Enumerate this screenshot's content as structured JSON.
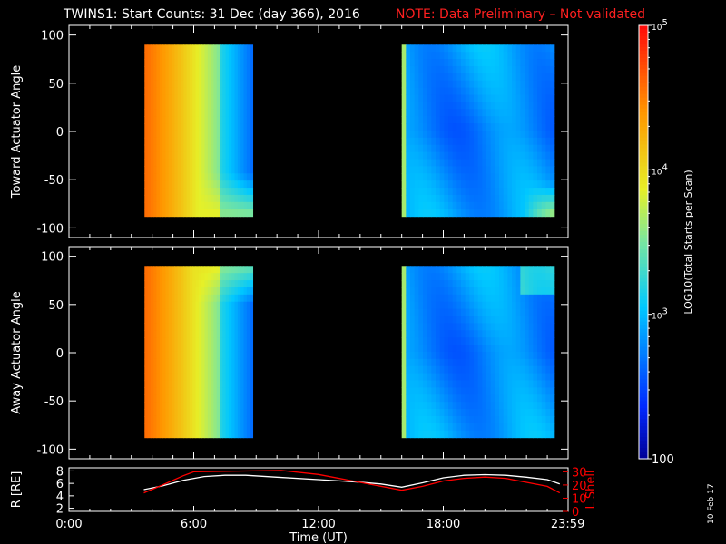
{
  "header": {
    "title": "TWINS1: Start Counts: 31 Dec (day 366), 2016",
    "note": "NOTE: Data Preliminary – Not validated",
    "note_color": "#ff0000"
  },
  "side_date": "10 Feb 17",
  "colorbar": {
    "label": "LOG10(Total Starts per Scan)",
    "ticks": [
      "100",
      "10^3",
      "10^4",
      "10^5"
    ],
    "log_range": [
      2,
      5
    ]
  },
  "chart_data": [
    {
      "type": "heatmap",
      "panel": "toward",
      "ylabel": "Toward Actuator Angle",
      "ylim": [
        -110,
        110
      ],
      "yticks": [
        -100,
        -50,
        0,
        50,
        100
      ],
      "xlim_hours": [
        0,
        24
      ],
      "data_blocks": [
        {
          "start": "03:38",
          "end": "08:50",
          "angle_range": [
            -88,
            90
          ]
        },
        {
          "start": "16:00",
          "end": "23:20",
          "angle_range": [
            -88,
            90
          ]
        }
      ]
    },
    {
      "type": "heatmap",
      "panel": "away",
      "ylabel": "Away Actuator Angle",
      "ylim": [
        -110,
        110
      ],
      "yticks": [
        -100,
        -50,
        0,
        50,
        100
      ],
      "xlim_hours": [
        0,
        24
      ],
      "data_blocks": [
        {
          "start": "03:38",
          "end": "08:50",
          "angle_range": [
            -88,
            90
          ]
        },
        {
          "start": "16:00",
          "end": "23:20",
          "angle_range": [
            -88,
            90
          ]
        }
      ]
    },
    {
      "type": "line",
      "panel": "orbit",
      "xlabel": "Time (UT)",
      "xticks": [
        "0:00",
        "6:00",
        "12:00",
        "18:00",
        "23:59"
      ],
      "left_axis": {
        "label": "R [RE]",
        "ticks": [
          2,
          4,
          6,
          8
        ],
        "range": [
          1.5,
          8.5
        ]
      },
      "right_axis": {
        "label": "L Shell",
        "ticks": [
          0,
          10,
          20,
          30
        ],
        "range": [
          0,
          33
        ],
        "color": "#ff0000"
      },
      "series": [
        {
          "axis": "left",
          "color": "#ffffff",
          "points": [
            [
              3.6,
              5.0
            ],
            [
              4.5,
              5.6
            ],
            [
              5.5,
              6.5
            ],
            [
              6.5,
              7.1
            ],
            [
              7.5,
              7.3
            ],
            [
              8.5,
              7.3
            ],
            [
              10,
              7.0
            ],
            [
              12,
              6.6
            ],
            [
              14,
              6.2
            ],
            [
              15,
              5.9
            ],
            [
              16,
              5.4
            ],
            [
              17,
              6.1
            ],
            [
              18,
              6.9
            ],
            [
              19,
              7.3
            ],
            [
              20,
              7.4
            ],
            [
              21,
              7.3
            ],
            [
              22,
              7.0
            ],
            [
              23,
              6.6
            ],
            [
              23.6,
              5.9
            ]
          ]
        },
        {
          "axis": "right",
          "color": "#ff0000",
          "points": [
            [
              3.6,
              14
            ],
            [
              4.5,
              20
            ],
            [
              5.5,
              27
            ],
            [
              6.0,
              30
            ],
            [
              10.2,
              31
            ],
            [
              12,
              28
            ],
            [
              14,
              22
            ],
            [
              16,
              16
            ],
            [
              17,
              19
            ],
            [
              18,
              23
            ],
            [
              19,
              25
            ],
            [
              20,
              26
            ],
            [
              21,
              25
            ],
            [
              22,
              22
            ],
            [
              23,
              19
            ],
            [
              23.6,
              14
            ]
          ]
        }
      ]
    }
  ]
}
